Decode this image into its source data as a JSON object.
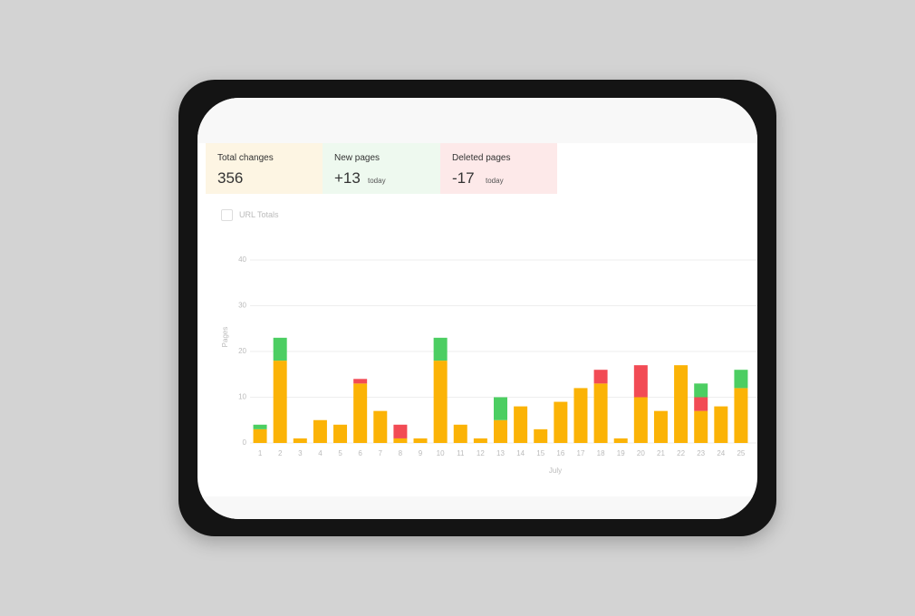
{
  "cards": [
    {
      "label": "Total changes",
      "value": "356"
    },
    {
      "label": "New pages",
      "value": "+13",
      "note": "today"
    },
    {
      "label": "Deleted pages",
      "value": "-17",
      "note": "today"
    }
  ],
  "toggle": {
    "label": "URL Totals"
  },
  "chart_data": {
    "type": "stacked-bar",
    "x_label": "July",
    "y_label": "Pages",
    "categories": [
      "1",
      "2",
      "3",
      "4",
      "5",
      "6",
      "7",
      "8",
      "9",
      "10",
      "11",
      "12",
      "13",
      "14",
      "15",
      "16",
      "17",
      "18",
      "19",
      "20",
      "21",
      "22",
      "23",
      "24",
      "25"
    ],
    "series": [
      {
        "color": "#fbb306",
        "values": [
          3,
          18,
          1,
          5,
          4,
          13,
          7,
          1,
          1,
          18,
          4,
          1,
          5,
          8,
          3,
          9,
          12,
          13,
          1,
          10,
          7,
          17,
          7,
          8,
          12
        ]
      },
      {
        "color": "#f24b55",
        "values": [
          0,
          0,
          0,
          0,
          0,
          1,
          0,
          3,
          0,
          0,
          0,
          0,
          0,
          0,
          0,
          0,
          0,
          3,
          0,
          7,
          0,
          0,
          3,
          0,
          0
        ]
      },
      {
        "color": "#4cce62",
        "values": [
          1,
          5,
          0,
          0,
          0,
          0,
          0,
          0,
          0,
          5,
          0,
          0,
          5,
          0,
          0,
          0,
          0,
          0,
          0,
          0,
          0,
          0,
          3,
          0,
          4
        ]
      }
    ],
    "ylim": [
      0,
      40
    ],
    "yticks": [
      0,
      10,
      20,
      30,
      40
    ],
    "grid": true
  }
}
